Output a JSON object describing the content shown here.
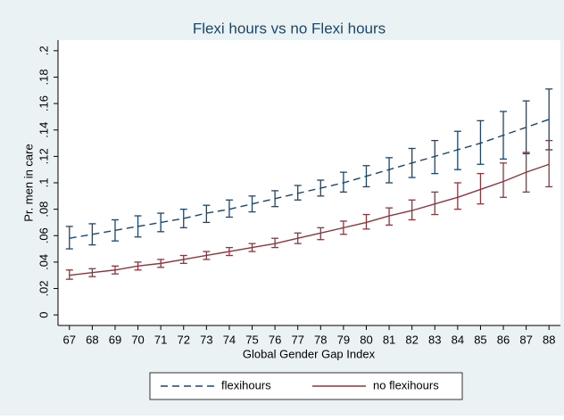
{
  "chart_data": {
    "type": "line",
    "title": "Flexi hours vs no Flexi hours",
    "xlabel": "Global Gender Gap Index",
    "ylabel": "Pr. men in care",
    "x": [
      67,
      68,
      69,
      70,
      71,
      72,
      73,
      74,
      75,
      76,
      77,
      78,
      79,
      80,
      81,
      82,
      83,
      84,
      85,
      86,
      87,
      88
    ],
    "xlim": [
      66.5,
      88.5
    ],
    "xticks": [
      67,
      68,
      69,
      70,
      71,
      72,
      73,
      74,
      75,
      76,
      77,
      78,
      79,
      80,
      81,
      82,
      83,
      84,
      85,
      86,
      87,
      88
    ],
    "ylim": [
      -0.008,
      0.208
    ],
    "yticks": [
      0,
      {
        "value": 0.02,
        "label": ".02"
      },
      {
        "value": 0.04,
        "label": ".04"
      },
      {
        "value": 0.06,
        "label": ".06"
      },
      {
        "value": 0.08,
        "label": ".08"
      },
      {
        "value": 0.1,
        "label": ".1"
      },
      {
        "value": 0.12,
        "label": ".12"
      },
      {
        "value": 0.14,
        "label": ".14"
      },
      {
        "value": 0.16,
        "label": ".16"
      },
      {
        "value": 0.18,
        "label": ".18"
      },
      {
        "value": 0.2,
        "label": ".2"
      }
    ],
    "grid": false,
    "legend": "bottom",
    "series": [
      {
        "name": "flexihours",
        "color": "#1a476f",
        "dash": true,
        "values": [
          0.058,
          0.061,
          0.064,
          0.067,
          0.07,
          0.073,
          0.077,
          0.08,
          0.084,
          0.088,
          0.092,
          0.096,
          0.1,
          0.105,
          0.11,
          0.115,
          0.12,
          0.125,
          0.13,
          0.136,
          0.142,
          0.148
        ],
        "lower": [
          0.05,
          0.053,
          0.056,
          0.059,
          0.063,
          0.066,
          0.07,
          0.074,
          0.078,
          0.082,
          0.087,
          0.09,
          0.093,
          0.097,
          0.1,
          0.104,
          0.107,
          0.11,
          0.114,
          0.118,
          0.122,
          0.125
        ],
        "upper": [
          0.067,
          0.069,
          0.072,
          0.075,
          0.077,
          0.08,
          0.083,
          0.087,
          0.09,
          0.094,
          0.098,
          0.102,
          0.108,
          0.113,
          0.119,
          0.126,
          0.132,
          0.139,
          0.147,
          0.154,
          0.162,
          0.171
        ]
      },
      {
        "name": "no flexihours",
        "color": "#90353b",
        "dash": false,
        "values": [
          0.03,
          0.032,
          0.034,
          0.037,
          0.039,
          0.042,
          0.045,
          0.048,
          0.051,
          0.054,
          0.058,
          0.062,
          0.066,
          0.07,
          0.075,
          0.079,
          0.084,
          0.089,
          0.095,
          0.101,
          0.108,
          0.114
        ],
        "lower": [
          0.027,
          0.029,
          0.031,
          0.034,
          0.036,
          0.039,
          0.042,
          0.045,
          0.048,
          0.051,
          0.054,
          0.057,
          0.061,
          0.065,
          0.068,
          0.072,
          0.076,
          0.08,
          0.084,
          0.089,
          0.093,
          0.097
        ],
        "upper": [
          0.034,
          0.035,
          0.037,
          0.04,
          0.042,
          0.045,
          0.048,
          0.051,
          0.054,
          0.058,
          0.062,
          0.066,
          0.071,
          0.076,
          0.081,
          0.087,
          0.093,
          0.1,
          0.107,
          0.115,
          0.123,
          0.132
        ]
      }
    ]
  }
}
